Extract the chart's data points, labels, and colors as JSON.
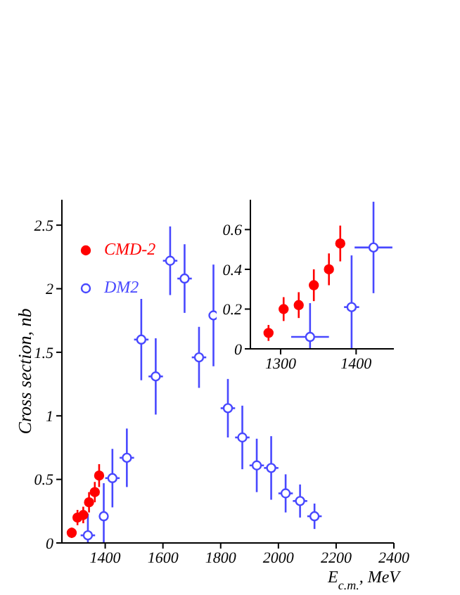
{
  "chart_data": [
    {
      "type": "scatter",
      "xlabel": "E$_{c.m.}$, MeV",
      "ylabel": "Cross section, nb",
      "xlim": [
        1250,
        2400
      ],
      "xticks": [
        1400,
        1600,
        1800,
        2000,
        2200,
        2400
      ],
      "ylim": [
        0,
        2.7
      ],
      "yticks": [
        0,
        0.5,
        1,
        1.5,
        2,
        2.5
      ],
      "grid": false,
      "legend": "top left",
      "marker": "circle",
      "series": [
        {
          "name": "CMD-2",
          "color": "#ff0000",
          "x": [
            1284,
            1304,
            1324,
            1344,
            1364,
            1379
          ],
          "values": [
            0.08,
            0.2,
            0.22,
            0.32,
            0.4,
            0.53
          ],
          "errors": [
            0.04,
            0.06,
            0.065,
            0.08,
            0.08,
            0.09
          ]
        },
        {
          "name": "DM2",
          "color": "#4848ff",
          "x": [
            1340,
            1395,
            1425,
            1475,
            1525,
            1575,
            1625,
            1675,
            1725,
            1775,
            1825,
            1875,
            1925,
            1975,
            2025,
            2075,
            2125
          ],
          "values": [
            0.06,
            0.21,
            0.51,
            0.67,
            1.6,
            1.31,
            2.22,
            2.08,
            1.46,
            1.79,
            1.06,
            0.83,
            0.61,
            0.59,
            0.39,
            0.33,
            0.21
          ],
          "errors": [
            [
              0,
              0.23
            ],
            [
              0,
              0.47
            ],
            0.23,
            0.23,
            0.32,
            0.3,
            0.27,
            0.27,
            0.24,
            0.4,
            0.23,
            0.25,
            0.21,
            0.25,
            0.15,
            0.13,
            0.1
          ],
          "xerrors": [
            25,
            10,
            25,
            25,
            25,
            25,
            25,
            25,
            25,
            null,
            25,
            25,
            25,
            25,
            25,
            25,
            25
          ]
        }
      ]
    },
    {
      "type": "scatter",
      "xlim": [
        1260,
        1450
      ],
      "xticks": [
        1300,
        1400
      ],
      "ylim": [
        0,
        0.75
      ],
      "yticks": [
        0,
        0.2,
        0.4,
        0.6
      ],
      "grid": false,
      "marker": "circle",
      "series": [
        {
          "color": "#ff0000",
          "x": [
            1284,
            1304,
            1324,
            1344,
            1364,
            1379
          ],
          "values": [
            0.08,
            0.2,
            0.22,
            0.32,
            0.4,
            0.53
          ],
          "errors": [
            0.04,
            0.06,
            0.065,
            0.08,
            0.08,
            0.09
          ]
        },
        {
          "color": "#4848ff",
          "x": [
            1339,
            1394,
            1423
          ],
          "values": [
            0.06,
            0.21,
            0.51
          ],
          "errors": [
            [
              0,
              0.23
            ],
            [
              0,
              0.47
            ],
            0.23
          ],
          "xerrors": [
            25,
            10,
            25
          ]
        }
      ]
    }
  ]
}
